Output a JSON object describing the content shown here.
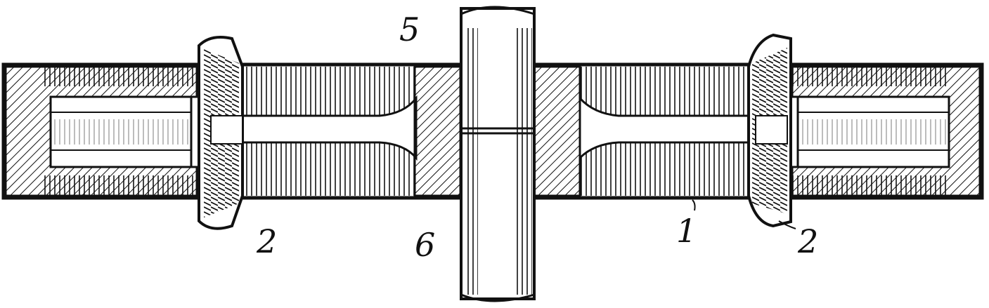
{
  "figure": {
    "reference_numerals": {
      "housing": "1",
      "bevel_gear_left": "2",
      "bevel_gear_right": "2",
      "shaft_upper": "5",
      "shaft_lower": "6"
    }
  },
  "colors": {
    "ink": "#111111",
    "paper": "#ffffff"
  }
}
